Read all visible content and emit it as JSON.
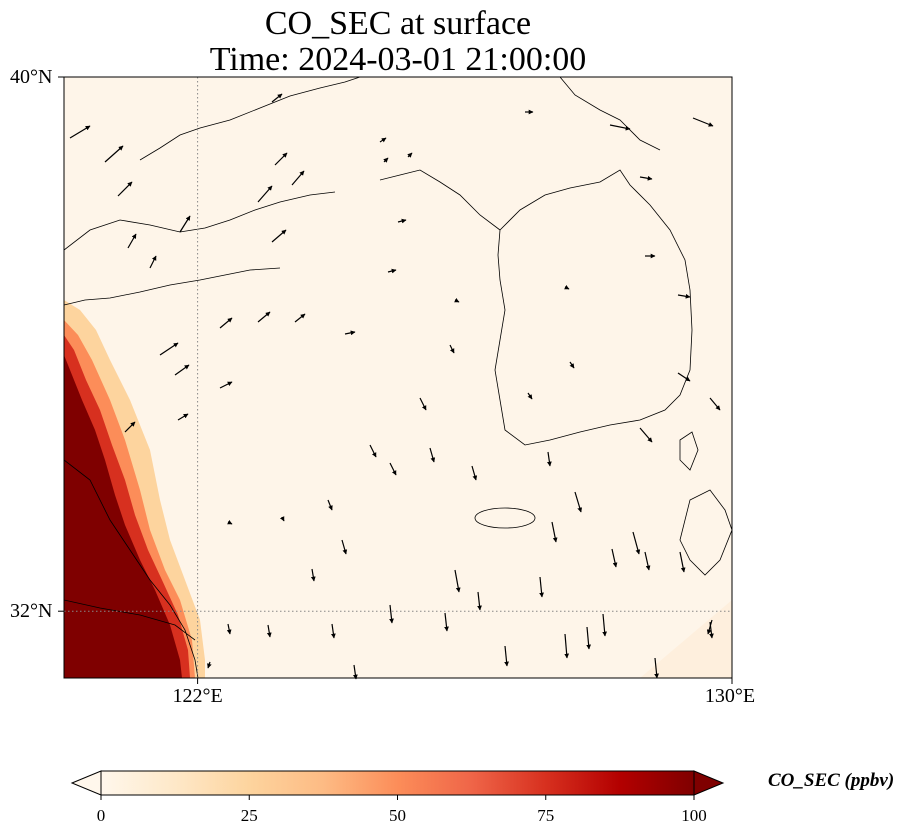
{
  "title": {
    "line1": "CO_SEC at surface",
    "line2": "Time: 2024-03-01 21:00:00"
  },
  "map": {
    "projection": "PlateCarree",
    "extent": {
      "lon_min": 120,
      "lon_max": 130,
      "lat_min": 31,
      "lat_max": 40
    },
    "lat_labels": [
      {
        "lat": 40,
        "text": "40°N"
      },
      {
        "lat": 32,
        "text": "32°N"
      }
    ],
    "lon_labels": [
      {
        "lon": 122,
        "text": "122°E"
      },
      {
        "lon": 130,
        "text": "130°E"
      }
    ],
    "gridlines": {
      "lons": [
        122
      ],
      "lats": [
        32
      ],
      "style": "dotted",
      "color": "#888888"
    },
    "field": {
      "name": "CO_SEC",
      "units": "ppbv",
      "note_high_region": "west/southwest coast of China ≥100 ppbv",
      "background_value": 1
    },
    "wind_vectors": "quiver arrows over domain, predominantly NE in northwest, S/SSE in southeast"
  },
  "colorbar": {
    "label": "CO_SEC (ppbv)",
    "vmin": 0,
    "vmax": 100,
    "extend": "both",
    "cmap": "OrRd",
    "ticks": [
      {
        "value": 0,
        "text": "0"
      },
      {
        "value": 25,
        "text": "25"
      },
      {
        "value": 50,
        "text": "50"
      },
      {
        "value": 75,
        "text": "75"
      },
      {
        "value": 100,
        "text": "100"
      }
    ],
    "colors": [
      "#fff7ec",
      "#fee8c8",
      "#fdd49e",
      "#fdbb84",
      "#fc8d59",
      "#ef6548",
      "#d7301f",
      "#b30000",
      "#7f0000"
    ]
  }
}
